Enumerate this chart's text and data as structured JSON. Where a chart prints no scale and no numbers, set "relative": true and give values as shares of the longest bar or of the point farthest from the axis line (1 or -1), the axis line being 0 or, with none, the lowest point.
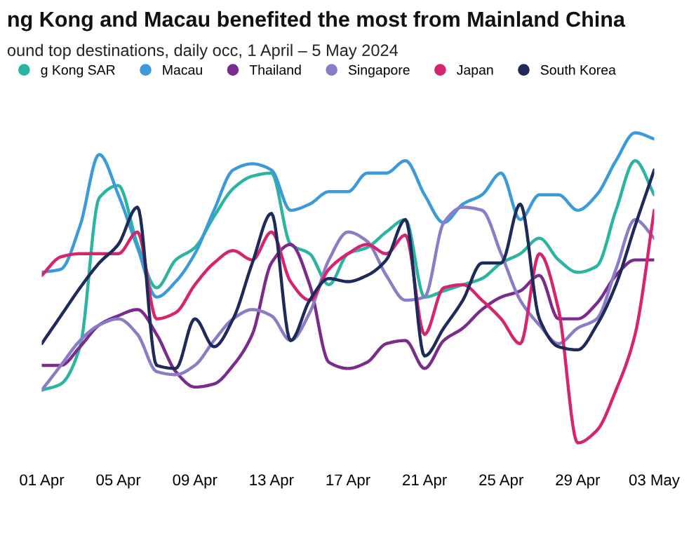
{
  "chart_data": {
    "type": "line",
    "title": "ng Kong and Macau benefited the most from Mainland China",
    "subtitle": "ound top destinations, daily occ, 1 April – 5 May 2024",
    "relative": true,
    "legend": "top left",
    "grid": false,
    "marker": "none",
    "line_style": "solid",
    "x": [
      "2024-04-01",
      "2024-04-02",
      "2024-04-03",
      "2024-04-04",
      "2024-04-05",
      "2024-04-06",
      "2024-04-07",
      "2024-04-08",
      "2024-04-09",
      "2024-04-10",
      "2024-04-11",
      "2024-04-12",
      "2024-04-13",
      "2024-04-14",
      "2024-04-15",
      "2024-04-16",
      "2024-04-17",
      "2024-04-18",
      "2024-04-19",
      "2024-04-20",
      "2024-04-21",
      "2024-04-22",
      "2024-04-23",
      "2024-04-24",
      "2024-04-25",
      "2024-04-26",
      "2024-04-27",
      "2024-04-28",
      "2024-04-29",
      "2024-04-30",
      "2024-05-01",
      "2024-05-02",
      "2024-05-03"
    ],
    "xlim": [
      "2024-04-01",
      "2024-05-03"
    ],
    "xticks": [
      {
        "value": "2024-04-01",
        "label": "01 Apr"
      },
      {
        "value": "2024-04-05",
        "label": "05 Apr"
      },
      {
        "value": "2024-04-09",
        "label": "09 Apr"
      },
      {
        "value": "2024-04-13",
        "label": "13 Apr"
      },
      {
        "value": "2024-04-17",
        "label": "17 Apr"
      },
      {
        "value": "2024-04-21",
        "label": "21 Apr"
      },
      {
        "value": "2024-04-25",
        "label": "25 Apr"
      },
      {
        "value": "2024-04-29",
        "label": "29 Apr"
      },
      {
        "value": "2024-05-03",
        "label": "03 May"
      }
    ],
    "series": [
      {
        "name": "g Kong SAR",
        "color": "#2bb5a0",
        "values": [
          0.17,
          0.19,
          0.31,
          0.79,
          0.83,
          0.64,
          0.5,
          0.59,
          0.63,
          0.73,
          0.82,
          0.86,
          0.87,
          0.64,
          0.61,
          0.51,
          0.61,
          0.63,
          0.68,
          0.72,
          0.47,
          0.49,
          0.51,
          0.53,
          0.58,
          0.61,
          0.66,
          0.59,
          0.55,
          0.57,
          0.75,
          0.91,
          0.8
        ]
      },
      {
        "name": "Macau",
        "color": "#3b9bd8",
        "values": [
          0.55,
          0.56,
          0.7,
          0.93,
          0.8,
          0.63,
          0.47,
          0.52,
          0.61,
          0.75,
          0.88,
          0.9,
          0.88,
          0.75,
          0.77,
          0.81,
          0.81,
          0.87,
          0.87,
          0.91,
          0.8,
          0.71,
          0.77,
          0.8,
          0.87,
          0.72,
          0.8,
          0.8,
          0.75,
          0.8,
          0.91,
          1,
          0.98
        ]
      },
      {
        "name": "Thailand",
        "color": "#7a2b8c",
        "values": [
          0.25,
          0.25,
          0.31,
          0.38,
          0.41,
          0.43,
          0.35,
          0.23,
          0.18,
          0.19,
          0.25,
          0.35,
          0.58,
          0.64,
          0.51,
          0.26,
          0.24,
          0.26,
          0.32,
          0.33,
          0.24,
          0.33,
          0.37,
          0.43,
          0.47,
          0.49,
          0.54,
          0.4,
          0.4,
          0.45,
          0.54,
          0.59,
          0.59
        ]
      },
      {
        "name": "Singapore",
        "color": "#8a7cc6",
        "values": [
          0.17,
          0.25,
          0.33,
          0.38,
          0.4,
          0.35,
          0.23,
          0.22,
          0.25,
          0.33,
          0.4,
          0.43,
          0.41,
          0.33,
          0.42,
          0.59,
          0.68,
          0.65,
          0.54,
          0.46,
          0.47,
          0.71,
          0.76,
          0.75,
          0.61,
          0.46,
          0.38,
          0.32,
          0.37,
          0.4,
          0.56,
          0.72,
          0.66
        ]
      },
      {
        "name": "Japan",
        "color": "#d6246e",
        "values": [
          0.54,
          0.6,
          0.61,
          0.61,
          0.61,
          0.68,
          0.4,
          0.42,
          0.51,
          0.58,
          0.62,
          0.59,
          0.68,
          0.52,
          0.46,
          0.56,
          0.61,
          0.64,
          0.61,
          0.67,
          0.35,
          0.5,
          0.51,
          0.46,
          0.4,
          0.32,
          0.61,
          0.43,
          0,
          0.04,
          0.17,
          0.35,
          0.75
        ]
      },
      {
        "name": "South Korea",
        "color": "#1d2a5a",
        "values": [
          0.32,
          0.41,
          0.5,
          0.58,
          0.64,
          0.76,
          0.25,
          0.24,
          0.4,
          0.31,
          0.4,
          0.58,
          0.74,
          0.33,
          0.46,
          0.53,
          0.52,
          0.54,
          0.59,
          0.72,
          0.28,
          0.37,
          0.46,
          0.58,
          0.58,
          0.77,
          0.4,
          0.31,
          0.3,
          0.38,
          0.51,
          0.7,
          0.88
        ]
      }
    ]
  }
}
